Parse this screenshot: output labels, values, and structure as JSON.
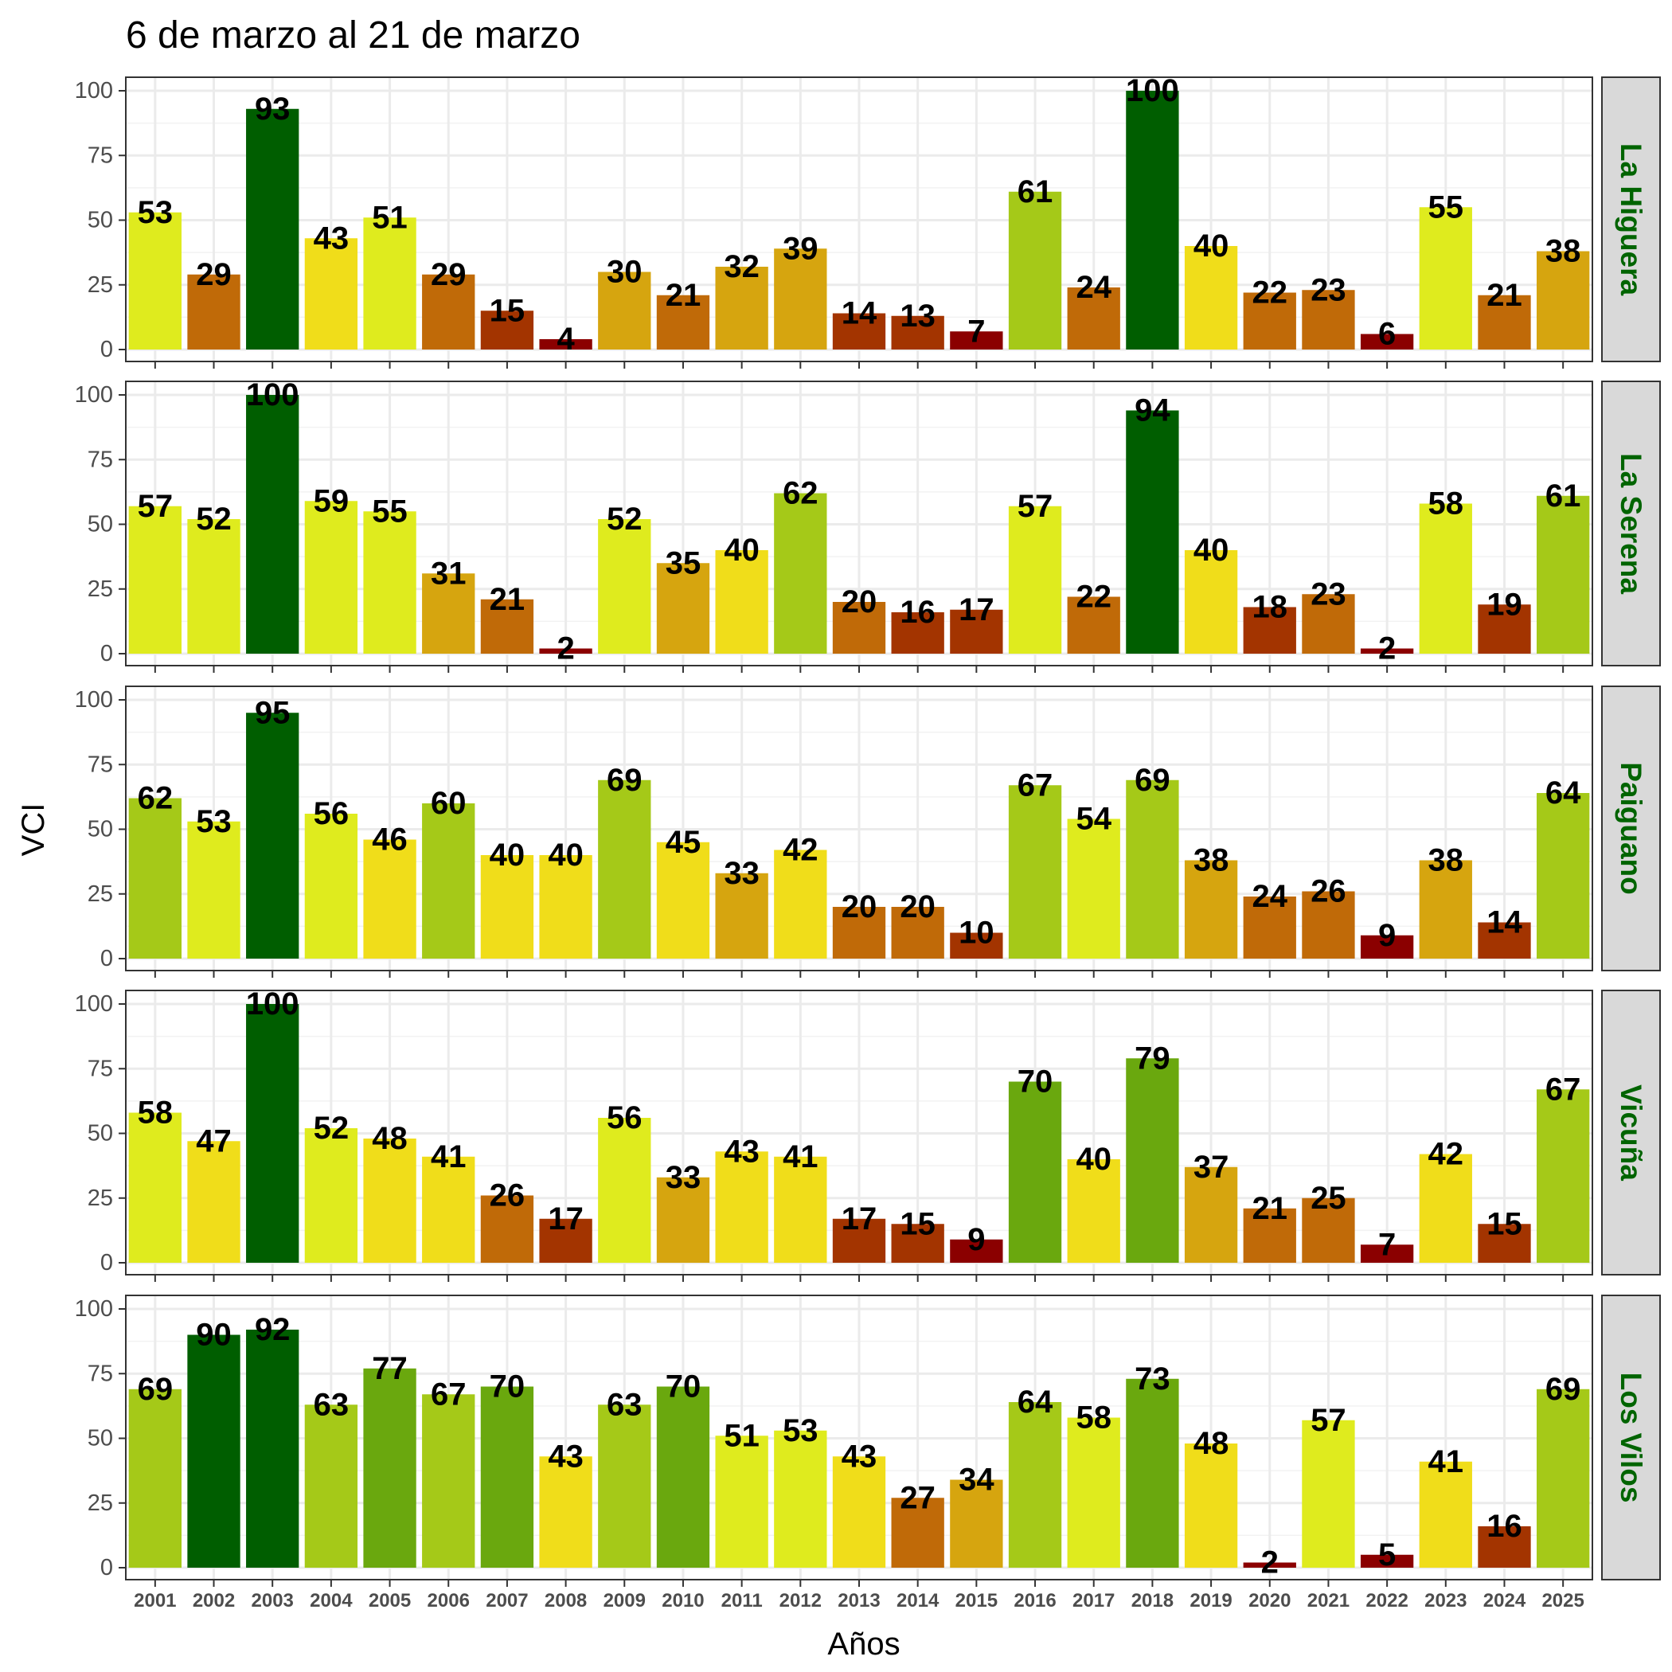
{
  "chart_data": {
    "type": "bar",
    "title": "6 de marzo al 21 de marzo",
    "xlabel": "Años",
    "ylabel": "VCI",
    "ylim": [
      0,
      100
    ],
    "yticks": [
      0,
      25,
      50,
      75,
      100
    ],
    "grid": true,
    "categories": [
      "2001",
      "2002",
      "2003",
      "2004",
      "2005",
      "2006",
      "2007",
      "2008",
      "2009",
      "2010",
      "2011",
      "2012",
      "2013",
      "2014",
      "2015",
      "2016",
      "2017",
      "2018",
      "2019",
      "2020",
      "2021",
      "2022",
      "2023",
      "2024",
      "2025"
    ],
    "series": [
      {
        "name": "La Higuera",
        "values": [
          53,
          29,
          93,
          43,
          51,
          29,
          15,
          4,
          30,
          21,
          32,
          39,
          14,
          13,
          7,
          61,
          24,
          100,
          40,
          22,
          23,
          6,
          55,
          21,
          38
        ]
      },
      {
        "name": "La Serena",
        "values": [
          57,
          52,
          100,
          59,
          55,
          31,
          21,
          2,
          52,
          35,
          40,
          62,
          20,
          16,
          17,
          57,
          22,
          94,
          40,
          18,
          23,
          2,
          58,
          19,
          61
        ]
      },
      {
        "name": "Paiguano",
        "values": [
          62,
          53,
          95,
          56,
          46,
          60,
          40,
          40,
          69,
          45,
          33,
          42,
          20,
          20,
          10,
          67,
          54,
          69,
          38,
          24,
          26,
          9,
          38,
          14,
          64
        ]
      },
      {
        "name": "Vicuña",
        "values": [
          58,
          47,
          100,
          52,
          48,
          41,
          26,
          17,
          56,
          33,
          43,
          41,
          17,
          15,
          9,
          70,
          40,
          79,
          37,
          21,
          25,
          7,
          42,
          15,
          67
        ]
      },
      {
        "name": "Los Vilos",
        "values": [
          69,
          90,
          92,
          63,
          77,
          67,
          70,
          43,
          63,
          70,
          51,
          53,
          43,
          27,
          34,
          64,
          58,
          73,
          48,
          2,
          57,
          5,
          41,
          16,
          69
        ]
      }
    ],
    "color_scale": [
      {
        "min": 0,
        "color": "#8b0000"
      },
      {
        "min": 10,
        "color": "#a33400"
      },
      {
        "min": 20,
        "color": "#c06a08"
      },
      {
        "min": 30,
        "color": "#d6a50f"
      },
      {
        "min": 40,
        "color": "#f0dd1a"
      },
      {
        "min": 50,
        "color": "#dfeb1e"
      },
      {
        "min": 60,
        "color": "#a5c918"
      },
      {
        "min": 70,
        "color": "#6aa80e"
      },
      {
        "min": 80,
        "color": "#337f05"
      },
      {
        "min": 90,
        "color": "#005e00"
      }
    ],
    "strip_text_color": "#006400",
    "strip_fill": "#d9d9d9"
  }
}
